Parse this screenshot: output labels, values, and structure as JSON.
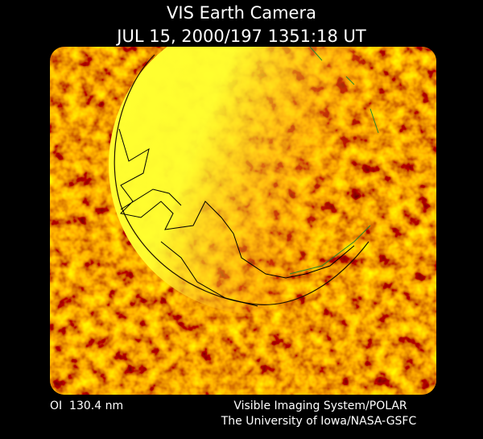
{
  "header": {
    "title": "VIS Earth Camera",
    "timestamp": "JUL 15, 2000/197 1351:18 UT"
  },
  "footer": {
    "wavelength": "OI  130.4 nm",
    "instrument": "Visible Imaging System/POLAR",
    "institution": "The University of Iowa/NASA-GSFC"
  }
}
